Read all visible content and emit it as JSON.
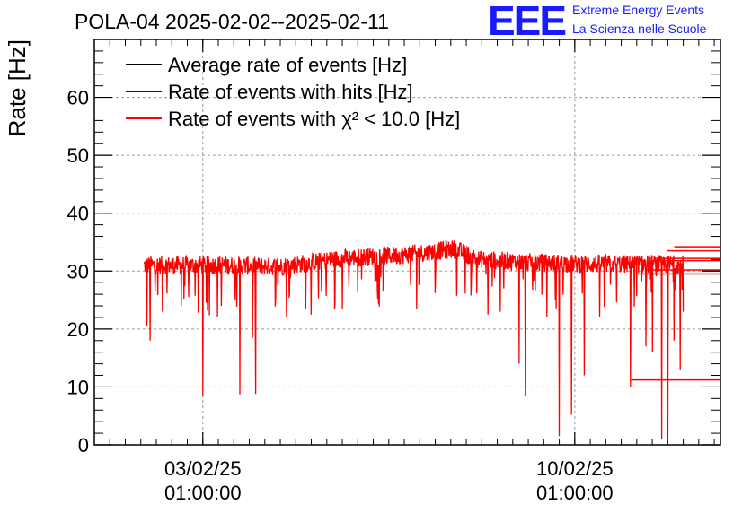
{
  "chart_data": {
    "type": "line",
    "title": "POLA-04 2025-02-02--2025-02-11",
    "xlabel": "",
    "ylabel": "Rate [Hz]",
    "ylim": [
      0,
      70
    ],
    "yticks": [
      0,
      10,
      20,
      30,
      40,
      50,
      60
    ],
    "xlim_days": [
      0,
      10.1
    ],
    "xticks": [
      {
        "day": 1.75,
        "line1": "03/02/25",
        "line2": "01:00:00"
      },
      {
        "day": 7.75,
        "line1": "10/02/25",
        "line2": "01:00:00"
      }
    ],
    "grid": true,
    "legend_position": "top-left",
    "legend": [
      {
        "label": "Average rate of events [Hz]",
        "color": "#000000"
      },
      {
        "label": "Rate of events with hits [Hz]",
        "color": "#0000cc"
      },
      {
        "label": "Rate of events with χ² < 10.0 [Hz]",
        "color": "#ff0000"
      }
    ],
    "series": [
      {
        "name": "Rate of events with χ² < 10.0 [Hz]",
        "color": "#ff0000",
        "baseline_profile": [
          {
            "day": 0.8,
            "value": 31.0
          },
          {
            "day": 2.0,
            "value": 31.0
          },
          {
            "day": 3.0,
            "value": 30.8
          },
          {
            "day": 4.0,
            "value": 32.2
          },
          {
            "day": 5.0,
            "value": 32.8
          },
          {
            "day": 5.8,
            "value": 33.8
          },
          {
            "day": 6.2,
            "value": 32.0
          },
          {
            "day": 7.0,
            "value": 31.5
          },
          {
            "day": 8.0,
            "value": 31.2
          },
          {
            "day": 9.5,
            "value": 31.2
          }
        ],
        "noise_amplitude": 1.6,
        "dips": [
          {
            "day": 0.85,
            "value": 20.5
          },
          {
            "day": 0.9,
            "value": 18.0
          },
          {
            "day": 1.1,
            "value": 23.0
          },
          {
            "day": 1.4,
            "value": 24.0
          },
          {
            "day": 1.75,
            "value": 8.5
          },
          {
            "day": 2.05,
            "value": 24.0
          },
          {
            "day": 2.35,
            "value": 8.7
          },
          {
            "day": 2.55,
            "value": 18.5
          },
          {
            "day": 2.6,
            "value": 8.8
          },
          {
            "day": 3.1,
            "value": 22.0
          },
          {
            "day": 4.0,
            "value": 23.5
          },
          {
            "day": 5.2,
            "value": 23.5
          },
          {
            "day": 6.35,
            "value": 22.5
          },
          {
            "day": 6.55,
            "value": 23.0
          },
          {
            "day": 6.85,
            "value": 14.0
          },
          {
            "day": 6.95,
            "value": 8.5
          },
          {
            "day": 7.3,
            "value": 22.0
          },
          {
            "day": 7.5,
            "value": 1.5
          },
          {
            "day": 7.7,
            "value": 5.2
          },
          {
            "day": 7.9,
            "value": 12.0
          },
          {
            "day": 8.15,
            "value": 22.0
          },
          {
            "day": 8.65,
            "value": 10.0
          },
          {
            "day": 8.9,
            "value": 17.0
          },
          {
            "day": 9.0,
            "value": 16.0
          },
          {
            "day": 9.15,
            "value": 1.0
          },
          {
            "day": 9.25,
            "value": 1.0
          },
          {
            "day": 9.35,
            "value": 18.0
          },
          {
            "day": 9.45,
            "value": 13.0
          },
          {
            "day": 9.5,
            "value": 23.0
          }
        ],
        "trailing_segments": [
          {
            "value": 34.2
          },
          {
            "value": 33.5
          },
          {
            "value": 32.2
          },
          {
            "value": 31.8
          },
          {
            "value": 30.2
          },
          {
            "value": 29.5
          },
          {
            "value": 11.2
          }
        ]
      }
    ]
  },
  "logo": {
    "eee": "EEE",
    "line1": "Extreme Energy Events",
    "line2": "La Scienza nelle Scuole"
  }
}
